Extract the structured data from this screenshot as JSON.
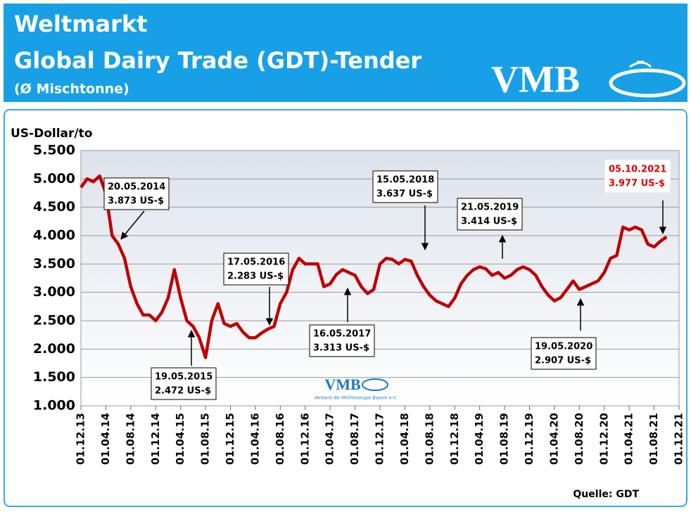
{
  "header": {
    "title": "Weltmarkt",
    "subtitle": "Global Dairy Trade (GDT)-Tender",
    "note": "(Ø Mischtonne)",
    "logo": "VMB"
  },
  "chart_data": {
    "type": "line",
    "y_label": "US-Dollar/to",
    "source": "Quelle: GDT",
    "watermark": {
      "logo": "VMB",
      "text": "Verband der Milcherzeuger Bayern e.V."
    },
    "grid": true,
    "ylim": [
      1000,
      5500
    ],
    "yticks": [
      {
        "value": 1000,
        "label": "1.000"
      },
      {
        "value": 1500,
        "label": "1.500"
      },
      {
        "value": 2000,
        "label": "2.000"
      },
      {
        "value": 2500,
        "label": "2.500"
      },
      {
        "value": 3000,
        "label": "3.000"
      },
      {
        "value": 3500,
        "label": "3.500"
      },
      {
        "value": 4000,
        "label": "4.000"
      },
      {
        "value": 4500,
        "label": "4.500"
      },
      {
        "value": 5000,
        "label": "5.000"
      },
      {
        "value": 5500,
        "label": "5.500"
      }
    ],
    "xlim": [
      "01.12.13",
      "01.12.21"
    ],
    "xticks": [
      "01.12.13",
      "01.04.14",
      "01.08.14",
      "01.12.14",
      "01.04.15",
      "01.08.15",
      "01.12.15",
      "01.04.16",
      "01.08.16",
      "01.12.16",
      "01.04.17",
      "01.08.17",
      "01.12.17",
      "01.04.18",
      "01.08.18",
      "01.12.18",
      "01.04.19",
      "01.08.19",
      "01.12.19",
      "01.04.20",
      "01.08.20",
      "01.12.20",
      "01.04.21",
      "01.08.21",
      "01.12.21"
    ],
    "x": [
      "01.12.13",
      "01.01.14",
      "01.02.14",
      "01.03.14",
      "01.04.14",
      "01.05.14",
      "01.06.14",
      "01.07.14",
      "01.08.14",
      "01.09.14",
      "01.10.14",
      "01.11.14",
      "01.12.14",
      "01.01.15",
      "01.02.15",
      "01.03.15",
      "01.04.15",
      "01.05.15",
      "01.06.15",
      "01.07.15",
      "01.08.15",
      "01.09.15",
      "01.10.15",
      "01.11.15",
      "01.12.15",
      "01.01.16",
      "01.02.16",
      "01.03.16",
      "01.04.16",
      "01.05.16",
      "01.06.16",
      "01.07.16",
      "01.08.16",
      "01.09.16",
      "01.10.16",
      "01.11.16",
      "01.12.16",
      "01.01.17",
      "01.02.17",
      "01.03.17",
      "01.04.17",
      "01.05.17",
      "01.06.17",
      "01.07.17",
      "01.08.17",
      "01.09.17",
      "01.10.17",
      "01.11.17",
      "01.12.17",
      "01.01.18",
      "01.02.18",
      "01.03.18",
      "01.04.18",
      "01.05.18",
      "01.06.18",
      "01.07.18",
      "01.08.18",
      "01.09.18",
      "01.10.18",
      "01.11.18",
      "01.12.18",
      "01.01.19",
      "01.02.19",
      "01.03.19",
      "01.04.19",
      "01.05.19",
      "01.06.19",
      "01.07.19",
      "01.08.19",
      "01.09.19",
      "01.10.19",
      "01.11.19",
      "01.12.19",
      "01.01.20",
      "01.02.20",
      "01.03.20",
      "01.04.20",
      "01.05.20",
      "01.06.20",
      "01.07.20",
      "01.08.20",
      "01.09.20",
      "01.10.20",
      "01.11.20",
      "01.12.20",
      "01.01.21",
      "01.02.21",
      "01.03.21",
      "01.04.21",
      "01.05.21",
      "01.06.21",
      "01.07.21",
      "01.08.21",
      "01.09.21",
      "01.10.21"
    ],
    "series": [
      {
        "color": "#c00000",
        "values": [
          4850,
          5000,
          4950,
          5050,
          4750,
          4000,
          3850,
          3600,
          3100,
          2800,
          2600,
          2600,
          2500,
          2650,
          2900,
          3400,
          2900,
          2500,
          2400,
          2200,
          1850,
          2500,
          2800,
          2450,
          2400,
          2450,
          2300,
          2200,
          2200,
          2283,
          2350,
          2400,
          2800,
          3000,
          3400,
          3600,
          3500,
          3500,
          3500,
          3100,
          3150,
          3313,
          3400,
          3350,
          3300,
          3100,
          2980,
          3050,
          3500,
          3600,
          3580,
          3500,
          3580,
          3550,
          3300,
          3100,
          2950,
          2850,
          2800,
          2750,
          2900,
          3150,
          3300,
          3400,
          3450,
          3414,
          3300,
          3350,
          3250,
          3300,
          3400,
          3450,
          3400,
          3300,
          3100,
          2950,
          2850,
          2907,
          3050,
          3200,
          3050,
          3100,
          3150,
          3200,
          3350,
          3600,
          3650,
          4150,
          4100,
          4150,
          4100,
          3850,
          3800,
          3900,
          3977
        ]
      }
    ],
    "annotations": [
      {
        "date": "20.05.2014",
        "label": "3.873 US-$",
        "color": "#000000"
      },
      {
        "date": "19.05.2015",
        "label": "2.472 US-$",
        "color": "#000000"
      },
      {
        "date": "17.05.2016",
        "label": "2.283 US-$",
        "color": "#000000"
      },
      {
        "date": "16.05.2017",
        "label": "3.313 US-$",
        "color": "#000000"
      },
      {
        "date": "15.05.2018",
        "label": "3.637 US-$",
        "color": "#000000"
      },
      {
        "date": "21.05.2019",
        "label": "3.414 US-$",
        "color": "#000000"
      },
      {
        "date": "19.05.2020",
        "label": "2.907 US-$",
        "color": "#000000"
      },
      {
        "date": "05.10.2021",
        "label": "3.977 US-$",
        "color": "#e00000"
      }
    ]
  }
}
